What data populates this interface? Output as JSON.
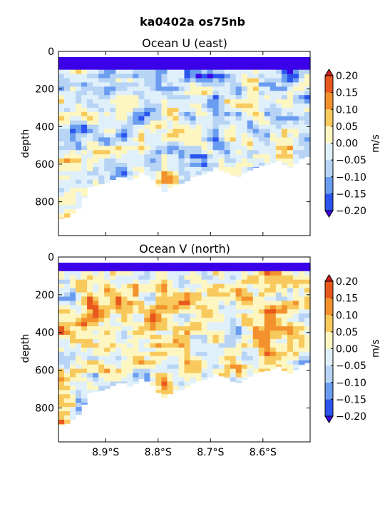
{
  "figure_title": "ka0402a os75nb",
  "colorbar": {
    "unit": "m/s",
    "levels": [
      -0.2,
      -0.15,
      -0.1,
      -0.05,
      0.0,
      0.05,
      0.1,
      0.15,
      0.2
    ],
    "tick_labels": [
      "−0.20",
      "−0.15",
      "−0.10",
      "−0.05",
      "0.00",
      "0.05",
      "0.10",
      "0.15",
      "0.20"
    ],
    "colors": [
      "#3b00e8",
      "#2c55f0",
      "#6a9cf0",
      "#b7d4f5",
      "#e0f0fb",
      "#fdf6c0",
      "#f8c95c",
      "#f3922c",
      "#e8571e",
      "#cc1c1c"
    ],
    "extend": "both"
  },
  "chart_data": [
    {
      "type": "heatmap",
      "subtype": "filled-contour",
      "title": "Ocean U (east)",
      "ylabel": "depth",
      "xlabel": "",
      "xlim": [
        -8.99,
        -8.51
      ],
      "ylim": [
        980,
        0
      ],
      "y_ticks": [
        0,
        200,
        400,
        600,
        800
      ],
      "x_ticks": [
        -8.9,
        -8.8,
        -8.7,
        -8.6
      ],
      "x_tick_labels": [],
      "colorbar_unit": "m/s",
      "depth_max_profile": {
        "lat": [
          -8.99,
          -8.97,
          -8.95,
          -8.93,
          -8.9,
          -8.87,
          -8.85,
          -8.83,
          -8.81,
          -8.79,
          -8.77,
          -8.75,
          -8.73,
          -8.71,
          -8.69,
          -8.67,
          -8.65,
          -8.63,
          -8.61,
          -8.59,
          -8.57,
          -8.55,
          -8.52
        ],
        "depth": [
          890,
          880,
          830,
          720,
          700,
          660,
          690,
          640,
          680,
          750,
          710,
          700,
          660,
          650,
          620,
          640,
          670,
          640,
          610,
          600,
          580,
          620,
          560
        ]
      },
      "surface_band": {
        "depth_top": 30,
        "depth_bottom": 80,
        "value": -0.2
      },
      "grid": false,
      "legend": "none"
    },
    {
      "type": "heatmap",
      "subtype": "filled-contour",
      "title": "Ocean V (north)",
      "ylabel": "depth",
      "xlabel": "",
      "xlim": [
        -8.99,
        -8.51
      ],
      "ylim": [
        980,
        0
      ],
      "y_ticks": [
        0,
        200,
        400,
        600,
        800
      ],
      "x_ticks": [
        -8.9,
        -8.8,
        -8.7,
        -8.6
      ],
      "x_tick_labels": [
        "8.9°S",
        "8.8°S",
        "8.7°S",
        "8.6°S"
      ],
      "colorbar_unit": "m/s",
      "depth_max_profile": {
        "lat": [
          -8.99,
          -8.97,
          -8.95,
          -8.93,
          -8.9,
          -8.87,
          -8.85,
          -8.83,
          -8.81,
          -8.79,
          -8.77,
          -8.75,
          -8.73,
          -8.71,
          -8.69,
          -8.67,
          -8.65,
          -8.63,
          -8.61,
          -8.59,
          -8.57,
          -8.55,
          -8.52
        ],
        "depth": [
          890,
          880,
          830,
          720,
          700,
          660,
          690,
          640,
          680,
          750,
          710,
          700,
          660,
          650,
          620,
          640,
          670,
          640,
          610,
          600,
          580,
          620,
          560
        ]
      },
      "surface_band": {
        "depth_top": 30,
        "depth_bottom": 70,
        "value": -0.2
      },
      "grid": false,
      "legend": "none"
    }
  ]
}
